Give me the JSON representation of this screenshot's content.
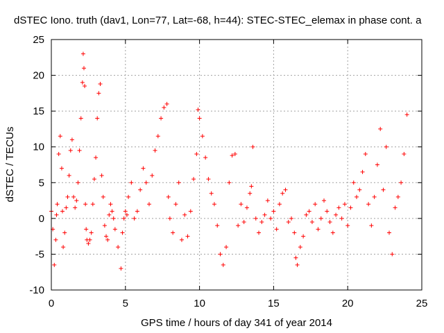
{
  "chart_data": {
    "type": "scatter",
    "title": "dSTEC Iono. truth (dav1, Lon=77, Lat=-68, h=44): STEC-STEC_elemax in phase cont. a",
    "xlabel": "GPS time / hours of day 341 of year 2014",
    "ylabel": "dSTEC  / TECUs",
    "xlim": [
      0,
      25
    ],
    "ylim": [
      -10,
      25
    ],
    "xticks": [
      0,
      5,
      10,
      15,
      20,
      25
    ],
    "yticks": [
      -10,
      -5,
      0,
      5,
      10,
      15,
      20,
      25
    ],
    "xtick_labels": [
      "0",
      "5",
      "10",
      "15",
      "20",
      "25"
    ],
    "ytick_labels": [
      "-10",
      "-5",
      "0",
      "5",
      "10",
      "15",
      "20",
      "25"
    ],
    "grid": true,
    "marker": "+",
    "color": "#ff0000",
    "series": [
      {
        "name": "dSTEC",
        "x": [
          0.0,
          0.1,
          0.2,
          0.3,
          0.35,
          0.4,
          0.5,
          0.6,
          0.7,
          0.75,
          0.8,
          0.9,
          1.0,
          1.1,
          1.2,
          1.3,
          1.4,
          1.5,
          1.6,
          1.7,
          1.8,
          1.9,
          2.0,
          2.1,
          2.15,
          2.2,
          2.25,
          2.3,
          2.35,
          2.4,
          2.5,
          2.6,
          2.7,
          2.8,
          2.9,
          3.0,
          3.1,
          3.2,
          3.3,
          3.4,
          3.5,
          3.6,
          3.7,
          3.8,
          3.9,
          4.0,
          4.1,
          4.2,
          4.3,
          4.5,
          4.7,
          4.8,
          4.9,
          5.0,
          5.1,
          5.2,
          5.4,
          5.6,
          5.8,
          6.0,
          6.2,
          6.4,
          6.6,
          6.8,
          7.0,
          7.2,
          7.4,
          7.6,
          7.8,
          7.9,
          8.0,
          8.2,
          8.4,
          8.6,
          8.8,
          9.0,
          9.2,
          9.4,
          9.6,
          9.8,
          9.9,
          10.0,
          10.2,
          10.4,
          10.6,
          10.8,
          11.0,
          11.2,
          11.4,
          11.6,
          11.8,
          12.0,
          12.2,
          12.4,
          12.6,
          12.8,
          13.0,
          13.2,
          13.4,
          13.5,
          13.6,
          13.8,
          14.0,
          14.2,
          14.4,
          14.6,
          14.8,
          15.0,
          15.2,
          15.4,
          15.6,
          15.8,
          16.0,
          16.2,
          16.4,
          16.5,
          16.6,
          16.8,
          17.0,
          17.2,
          17.4,
          17.6,
          17.8,
          18.0,
          18.2,
          18.4,
          18.6,
          18.8,
          19.0,
          19.2,
          19.4,
          19.6,
          19.8,
          20.0,
          20.2,
          20.4,
          20.6,
          20.8,
          21.0,
          21.2,
          21.4,
          21.6,
          21.8,
          22.0,
          22.2,
          22.4,
          22.6,
          22.8,
          23.0,
          23.2,
          23.4,
          23.6,
          23.8,
          24.0
        ],
        "y": [
          1.0,
          -1.5,
          -6.5,
          -3.0,
          0.5,
          2.0,
          9.0,
          11.5,
          7.0,
          1.0,
          -4.0,
          -2.0,
          1.5,
          3.0,
          6.0,
          9.5,
          11.0,
          3.0,
          1.5,
          2.5,
          5.0,
          9.5,
          14.0,
          19.0,
          23.0,
          21.0,
          18.5,
          2.0,
          -1.5,
          -3.0,
          -3.5,
          -3.0,
          -2.0,
          2.0,
          5.5,
          8.5,
          14.0,
          17.5,
          18.8,
          6.0,
          3.0,
          -1.0,
          -2.5,
          -3.0,
          0.5,
          2.0,
          1.0,
          0.0,
          -1.5,
          -4.0,
          -7.0,
          -2.0,
          0.0,
          1.0,
          0.5,
          3.0,
          5.0,
          0.0,
          1.0,
          4.0,
          7.0,
          5.0,
          2.0,
          6.0,
          9.5,
          11.5,
          14.0,
          15.5,
          16.0,
          3.0,
          0.0,
          -2.0,
          2.0,
          5.0,
          -3.0,
          0.5,
          -2.5,
          1.0,
          5.5,
          9.0,
          15.2,
          14.0,
          11.5,
          8.5,
          5.5,
          3.5,
          2.0,
          -1.0,
          -5.0,
          -6.5,
          -4.0,
          5.0,
          8.8,
          9.0,
          -1.0,
          2.0,
          -0.5,
          1.5,
          3.5,
          4.5,
          10.0,
          0.0,
          -2.0,
          -0.5,
          0.5,
          2.5,
          0.0,
          1.0,
          -1.5,
          2.0,
          3.5,
          4.0,
          -0.5,
          0.0,
          -2.0,
          -5.5,
          -6.5,
          -4.0,
          -2.5,
          0.5,
          1.0,
          -0.5,
          2.0,
          -1.5,
          0.0,
          2.5,
          1.0,
          -0.5,
          -2.0,
          0.5,
          1.5,
          0.0,
          2.0,
          -1.0,
          1.5,
          5.0,
          3.0,
          4.0,
          6.5,
          9.0,
          2.0,
          -1.0,
          3.0,
          7.5,
          12.5,
          4.0,
          10.0,
          -2.0,
          -5.0,
          1.5,
          3.0,
          5.0,
          9.0,
          14.5
        ]
      }
    ]
  }
}
